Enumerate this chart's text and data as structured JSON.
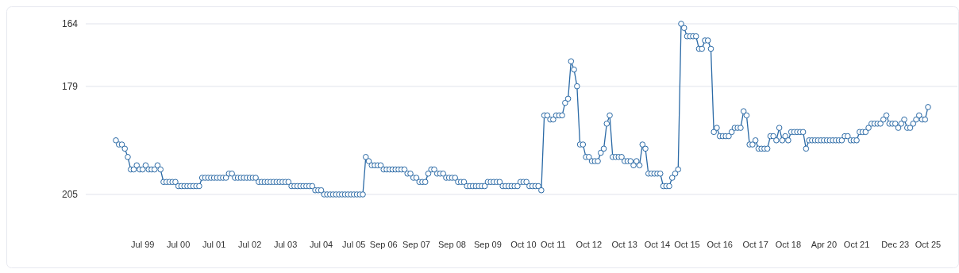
{
  "chart_data": {
    "type": "line",
    "categories": [
      null,
      null,
      null,
      null,
      null,
      null,
      null,
      null,
      null,
      "Jul 99",
      null,
      null,
      null,
      null,
      null,
      null,
      null,
      null,
      null,
      null,
      null,
      "Jul 00",
      null,
      null,
      null,
      null,
      null,
      null,
      null,
      null,
      null,
      null,
      null,
      "Jul 01",
      null,
      null,
      null,
      null,
      null,
      null,
      null,
      null,
      null,
      null,
      null,
      "Jul 02",
      null,
      null,
      null,
      null,
      null,
      null,
      null,
      null,
      null,
      null,
      null,
      "Jul 03",
      null,
      null,
      null,
      null,
      null,
      null,
      null,
      null,
      null,
      null,
      null,
      "Jul 04",
      null,
      null,
      null,
      null,
      null,
      null,
      null,
      null,
      null,
      null,
      "Jul 05",
      null,
      null,
      null,
      null,
      null,
      null,
      null,
      null,
      null,
      "Sep 06",
      null,
      null,
      null,
      null,
      null,
      null,
      null,
      null,
      null,
      null,
      "Sep 07",
      null,
      null,
      null,
      null,
      null,
      null,
      null,
      null,
      null,
      null,
      null,
      "Sep 08",
      null,
      null,
      null,
      null,
      null,
      null,
      null,
      null,
      null,
      null,
      null,
      "Sep 09",
      null,
      null,
      null,
      null,
      null,
      null,
      null,
      null,
      null,
      null,
      null,
      "Oct 10",
      null,
      null,
      null,
      null,
      null,
      null,
      null,
      null,
      null,
      "Oct 11",
      null,
      null,
      null,
      null,
      null,
      null,
      null,
      null,
      null,
      null,
      null,
      "Oct 12",
      null,
      null,
      null,
      null,
      null,
      null,
      null,
      null,
      null,
      null,
      null,
      "Oct 13",
      null,
      null,
      null,
      null,
      null,
      null,
      null,
      null,
      null,
      null,
      "Oct 14",
      null,
      null,
      null,
      null,
      null,
      null,
      null,
      null,
      null,
      "Oct 15",
      null,
      null,
      null,
      null,
      null,
      null,
      null,
      null,
      null,
      null,
      "Oct 16",
      null,
      null,
      null,
      null,
      null,
      null,
      null,
      null,
      null,
      null,
      null,
      "Oct 17",
      null,
      null,
      null,
      null,
      null,
      null,
      null,
      null,
      null,
      null,
      "Oct 18",
      null,
      null,
      null,
      null,
      null,
      null,
      null,
      null,
      null,
      null,
      null,
      "Apr 20",
      null,
      null,
      null,
      null,
      null,
      null,
      null,
      null,
      null,
      null,
      "Oct 21",
      null,
      null,
      null,
      null,
      null,
      null,
      null,
      null,
      null,
      null,
      null,
      null,
      "Dec 23",
      null,
      null,
      null,
      null,
      null,
      null,
      null,
      null,
      null,
      null,
      "Oct 25"
    ],
    "series": [
      {
        "color": "#2b6aa6",
        "values": [
          192,
          193,
          193,
          194,
          196,
          199,
          199,
          198,
          199,
          199,
          198,
          199,
          199,
          199,
          198,
          199,
          202,
          202,
          202,
          202,
          202,
          203,
          203,
          203,
          203,
          203,
          203,
          203,
          203,
          201,
          201,
          201,
          201,
          201,
          201,
          201,
          201,
          201,
          200,
          200,
          201,
          201,
          201,
          201,
          201,
          201,
          201,
          201,
          202,
          202,
          202,
          202,
          202,
          202,
          202,
          202,
          202,
          202,
          202,
          203,
          203,
          203,
          203,
          203,
          203,
          203,
          203,
          204,
          204,
          204,
          205,
          205,
          205,
          205,
          205,
          205,
          205,
          205,
          205,
          205,
          205,
          205,
          205,
          205,
          196,
          197,
          198,
          198,
          198,
          198,
          199,
          199,
          199,
          199,
          199,
          199,
          199,
          199,
          200,
          200,
          201,
          201,
          202,
          202,
          202,
          200,
          199,
          199,
          200,
          200,
          200,
          201,
          201,
          201,
          201,
          202,
          202,
          202,
          203,
          203,
          203,
          203,
          203,
          203,
          203,
          202,
          202,
          202,
          202,
          202,
          203,
          203,
          203,
          203,
          203,
          203,
          202,
          202,
          202,
          203,
          203,
          203,
          203,
          204,
          186,
          186,
          187,
          187,
          186,
          186,
          186,
          183,
          182,
          173,
          175,
          179,
          193,
          193,
          196,
          196,
          197,
          197,
          197,
          195,
          194,
          188,
          186,
          196,
          196,
          196,
          196,
          197,
          197,
          197,
          198,
          197,
          198,
          193,
          194,
          200,
          200,
          200,
          200,
          200,
          203,
          203,
          203,
          201,
          200,
          199,
          164,
          165,
          167,
          167,
          167,
          167,
          170,
          170,
          168,
          168,
          170,
          190,
          189,
          191,
          191,
          191,
          191,
          190,
          189,
          189,
          189,
          185,
          186,
          193,
          193,
          192,
          194,
          194,
          194,
          194,
          191,
          191,
          192,
          189,
          192,
          191,
          192,
          190,
          190,
          190,
          190,
          190,
          194,
          192,
          192,
          192,
          192,
          192,
          192,
          192,
          192,
          192,
          192,
          192,
          192,
          191,
          191,
          192,
          192,
          192,
          190,
          190,
          190,
          189,
          188,
          188,
          188,
          188,
          187,
          186,
          188,
          188,
          188,
          189,
          188,
          187,
          189,
          189,
          188,
          187,
          186,
          187,
          187,
          184
        ]
      }
    ],
    "ylim": [
      205,
      164
    ],
    "yticks": [
      164,
      179,
      205
    ],
    "grid": "y",
    "marker": "circle"
  }
}
